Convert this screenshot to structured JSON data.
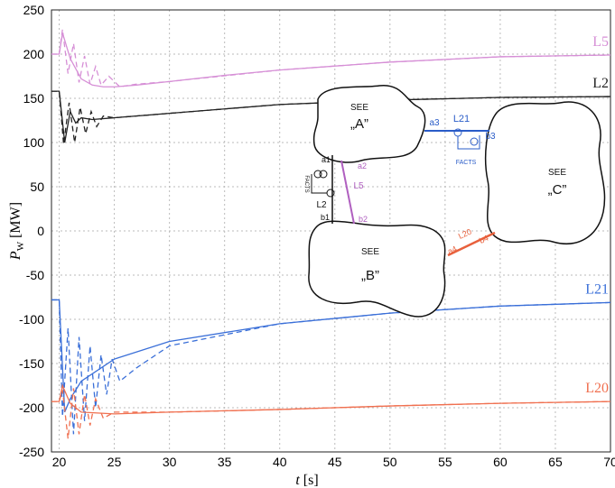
{
  "chart_data": {
    "type": "line",
    "x_label": {
      "symbol": "t",
      "unit": "[s]"
    },
    "y_label": {
      "symbol": "P",
      "subscript": "W",
      "unit": "[MW]"
    },
    "xlim": [
      19.3,
      70
    ],
    "ylim": [
      -250,
      250
    ],
    "xticks": [
      20,
      25,
      30,
      35,
      40,
      45,
      50,
      55,
      60,
      65,
      70
    ],
    "yticks": [
      -250,
      -200,
      -150,
      -100,
      -50,
      0,
      50,
      100,
      150,
      200,
      250
    ],
    "grid": true,
    "series": [
      {
        "name": "L5",
        "color": "#d68fd6",
        "x": [
          19.3,
          20,
          20.3,
          21,
          22,
          23,
          24,
          25,
          27,
          30,
          35,
          40,
          50,
          60,
          70
        ],
        "values": [
          200,
          200,
          224,
          195,
          172,
          165,
          163,
          163,
          165,
          169,
          176,
          182,
          191,
          197,
          199
        ]
      },
      {
        "color": "#d68fd6",
        "dashed": true,
        "x": [
          19.3,
          20,
          20.3,
          20.8,
          21.3,
          21.8,
          22.3,
          22.8,
          23.3,
          23.8,
          24.5,
          25.5,
          27,
          30,
          40,
          50,
          60,
          70
        ],
        "values": [
          200,
          200,
          228,
          178,
          212,
          168,
          198,
          166,
          186,
          165,
          175,
          163,
          166,
          169,
          182,
          191,
          197,
          199
        ]
      },
      {
        "name": "L2",
        "color": "#222222",
        "x": [
          19.3,
          20,
          20.5,
          21,
          21.5,
          22,
          23,
          25,
          30,
          40,
          50,
          60,
          70
        ],
        "values": [
          158,
          158,
          100,
          135,
          122,
          128,
          126,
          128,
          133,
          143,
          148,
          151,
          152
        ]
      },
      {
        "color": "#222222",
        "dashed": true,
        "x": [
          19.3,
          20,
          20.4,
          20.9,
          21.4,
          21.9,
          22.4,
          22.9,
          23.4,
          24,
          25,
          30,
          40,
          50,
          60,
          70
        ],
        "values": [
          158,
          158,
          98,
          145,
          100,
          140,
          110,
          135,
          118,
          130,
          128,
          133,
          143,
          148,
          151,
          152
        ]
      },
      {
        "name": "L21",
        "color": "#3a6fd8",
        "x": [
          19.3,
          20,
          20.5,
          21,
          22,
          25,
          30,
          40,
          50,
          60,
          70
        ],
        "values": [
          -78,
          -78,
          -205,
          -190,
          -170,
          -145,
          -125,
          -105,
          -93,
          -85,
          -81
        ]
      },
      {
        "color": "#3a6fd8",
        "dashed": true,
        "x": [
          19.3,
          20,
          20.3,
          20.8,
          21.3,
          21.8,
          22.3,
          22.8,
          23.3,
          23.8,
          24.3,
          24.8,
          25.5,
          27,
          30,
          40,
          50,
          60,
          70
        ],
        "values": [
          -78,
          -78,
          -210,
          -110,
          -230,
          -120,
          -215,
          -130,
          -200,
          -140,
          -185,
          -145,
          -170,
          -155,
          -130,
          -105,
          -93,
          -85,
          -81
        ]
      },
      {
        "name": "L20",
        "color": "#f07050",
        "x": [
          19.3,
          20,
          20.3,
          21,
          22,
          25,
          30,
          40,
          50,
          60,
          70
        ],
        "values": [
          -193,
          -193,
          -175,
          -195,
          -205,
          -207,
          -205,
          -202,
          -198,
          -195,
          -193
        ]
      },
      {
        "color": "#f07050",
        "dashed": true,
        "x": [
          19.3,
          20,
          20.3,
          20.8,
          21.3,
          21.8,
          22.3,
          22.8,
          23.3,
          24,
          25,
          30,
          40,
          50,
          60,
          70
        ],
        "values": [
          -193,
          -193,
          -180,
          -235,
          -178,
          -230,
          -185,
          -220,
          -190,
          -212,
          -205,
          -205,
          -202,
          -198,
          -195,
          -193
        ]
      }
    ],
    "inset": {
      "see": "SEE",
      "area_a": "„A”",
      "area_b": "„B”",
      "area_c": "„C”",
      "labels": {
        "a1": "a1",
        "a2": "a2",
        "a3": "a3",
        "a4": "a4",
        "b1": "b1",
        "b2": "b2",
        "b3": "b3",
        "b4": "b4",
        "l2": "L2",
        "l5": "L5",
        "l20": "L20",
        "l21": "L21",
        "facts_1": "FACTS",
        "facts_2": "FACTS"
      }
    }
  }
}
